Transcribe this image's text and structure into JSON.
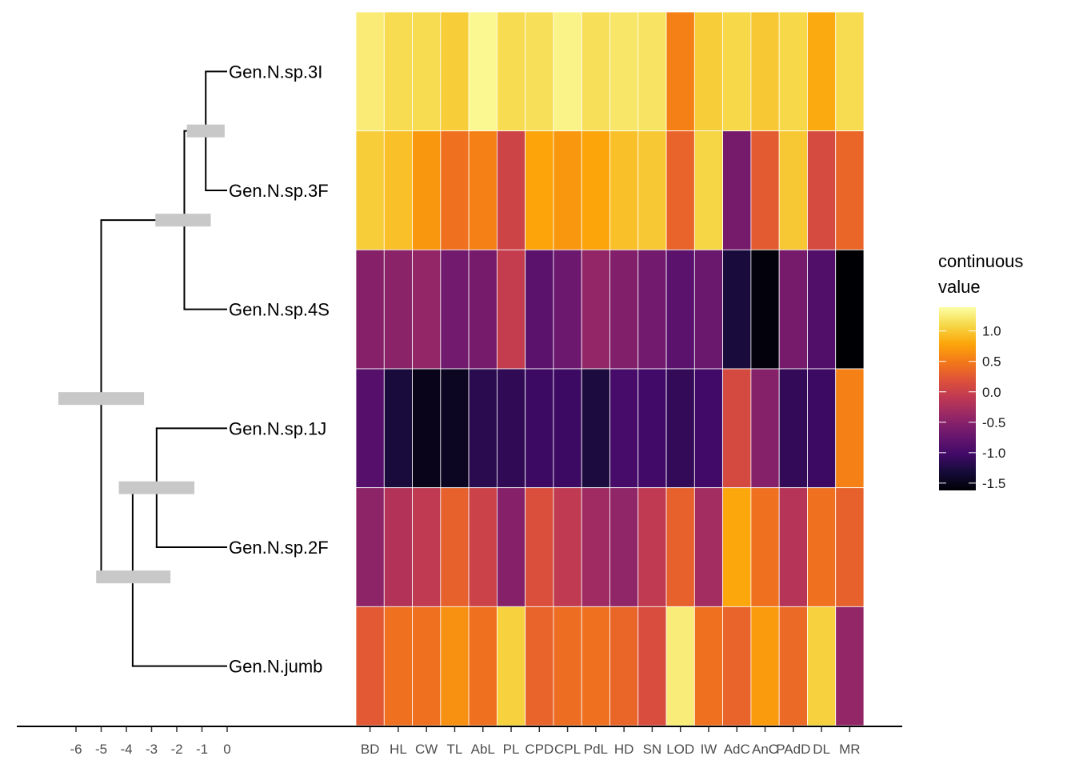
{
  "chart_data": {
    "type": "heatmap",
    "title": "",
    "description": "Phylogenetic tree with node uncertainty bars alongside a heatmap of continuous trait values",
    "tree": {
      "xlabel": "",
      "x_ticks": [
        "-6",
        "-5",
        "-4",
        "-3",
        "-2",
        "-1",
        "0"
      ],
      "x_range": [
        -7.3,
        0
      ],
      "tips": [
        "Gen.N.sp.3I",
        "Gen.N.sp.3F",
        "Gen.N.sp.4S",
        "Gen.N.sp.1J",
        "Gen.N.sp.2F",
        "Gen.N.jumb"
      ],
      "nodes": [
        {
          "id": "root",
          "age": -5.0,
          "children": [
            "A",
            "C"
          ],
          "interval": [
            -6.7,
            -3.3
          ]
        },
        {
          "id": "A",
          "age": -1.7,
          "children": [
            "B",
            "Gen.N.sp.4S"
          ],
          "interval": [
            -2.85,
            -0.65
          ]
        },
        {
          "id": "B",
          "age": -0.85,
          "children": [
            "Gen.N.sp.3I",
            "Gen.N.sp.3F"
          ],
          "interval": [
            -1.6,
            -0.1
          ]
        },
        {
          "id": "C",
          "age": -3.75,
          "children": [
            "D",
            "Gen.N.jumb"
          ],
          "interval": [
            -5.2,
            -2.25
          ]
        },
        {
          "id": "D",
          "age": -2.8,
          "children": [
            "Gen.N.sp.1J",
            "Gen.N.sp.2F"
          ],
          "interval": [
            -4.3,
            -1.3
          ]
        }
      ]
    },
    "heatmap": {
      "columns": [
        "BD",
        "HL",
        "CW",
        "TL",
        "AbL",
        "PL",
        "CPD",
        "CPL",
        "PdL",
        "HD",
        "SN",
        "LOD",
        "IW",
        "AdC",
        "AnC",
        "PAdD",
        "DL",
        "MR"
      ],
      "rows": [
        "Gen.N.sp.3I",
        "Gen.N.sp.3F",
        "Gen.N.sp.4S",
        "Gen.N.sp.1J",
        "Gen.N.sp.2F",
        "Gen.N.jumb"
      ],
      "values": [
        [
          1.24,
          1.12,
          1.12,
          1.03,
          1.33,
          1.12,
          1.15,
          1.3,
          1.15,
          1.2,
          1.18,
          0.55,
          1.03,
          1.1,
          1.0,
          1.1,
          0.82,
          1.12
        ],
        [
          1.03,
          0.95,
          0.7,
          0.43,
          0.55,
          0.04,
          0.78,
          0.7,
          0.79,
          0.95,
          1.0,
          0.33,
          1.08,
          -0.63,
          0.27,
          1.0,
          0.12,
          0.35
        ],
        [
          -0.51,
          -0.48,
          -0.42,
          -0.66,
          -0.63,
          -0.05,
          -0.84,
          -0.7,
          -0.42,
          -0.55,
          -0.66,
          -0.84,
          -0.72,
          -1.3,
          -1.58,
          -0.63,
          -0.9,
          -1.62
        ],
        [
          -0.87,
          -1.3,
          -1.5,
          -1.45,
          -1.18,
          -1.14,
          -1.05,
          -1.05,
          -1.28,
          -0.98,
          -1.02,
          -1.12,
          -1.02,
          0.1,
          -0.52,
          -1.12,
          -1.05,
          0.55
        ],
        [
          -0.46,
          -0.18,
          -0.08,
          0.31,
          0.02,
          -0.51,
          0.16,
          -0.08,
          -0.33,
          -0.44,
          -0.08,
          0.31,
          -0.3,
          0.8,
          0.43,
          -0.17,
          0.43,
          0.31
        ],
        [
          0.25,
          0.43,
          0.43,
          0.65,
          0.43,
          1.05,
          0.33,
          0.4,
          0.43,
          0.35,
          0.14,
          1.25,
          0.43,
          0.33,
          0.72,
          0.38,
          1.05,
          -0.42
        ]
      ]
    },
    "legend": {
      "title_lines": [
        "continuous",
        "value"
      ],
      "ticks": [
        "1.0",
        "0.5",
        "0.0",
        "-0.5",
        "-1.0",
        "-1.5"
      ],
      "tick_values": [
        1.0,
        0.5,
        0.0,
        -0.5,
        -1.0,
        -1.5
      ],
      "range": [
        -1.62,
        1.39
      ],
      "colormap": "inferno",
      "placement": "right"
    },
    "colors": {
      "tree_line": "#000000",
      "node_bar": "#c8c8c8",
      "axis": "#000000",
      "tick_text": "#4d4d4d",
      "cell_border": "#ffffff"
    }
  }
}
